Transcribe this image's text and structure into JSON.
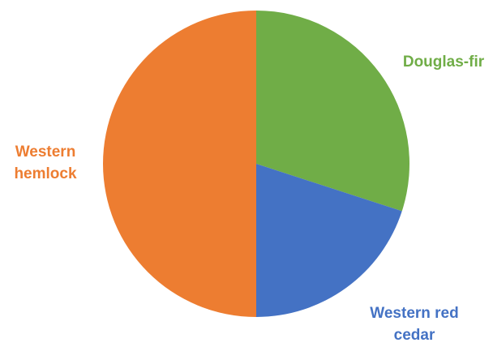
{
  "chart_data": {
    "type": "pie",
    "start": "12 o'clock",
    "direction": "clockwise",
    "slices": [
      {
        "label": "Douglas-fir",
        "label_lines": [
          "Douglas-fir"
        ],
        "value": 30,
        "color": "#70ad47"
      },
      {
        "label": "Western red cedar",
        "label_lines": [
          "Western red",
          "cedar"
        ],
        "value": 20,
        "color": "#4472c4"
      },
      {
        "label": "Western hemlock",
        "label_lines": [
          "Western",
          "hemlock"
        ],
        "value": 50,
        "color": "#ed7d31"
      }
    ]
  }
}
